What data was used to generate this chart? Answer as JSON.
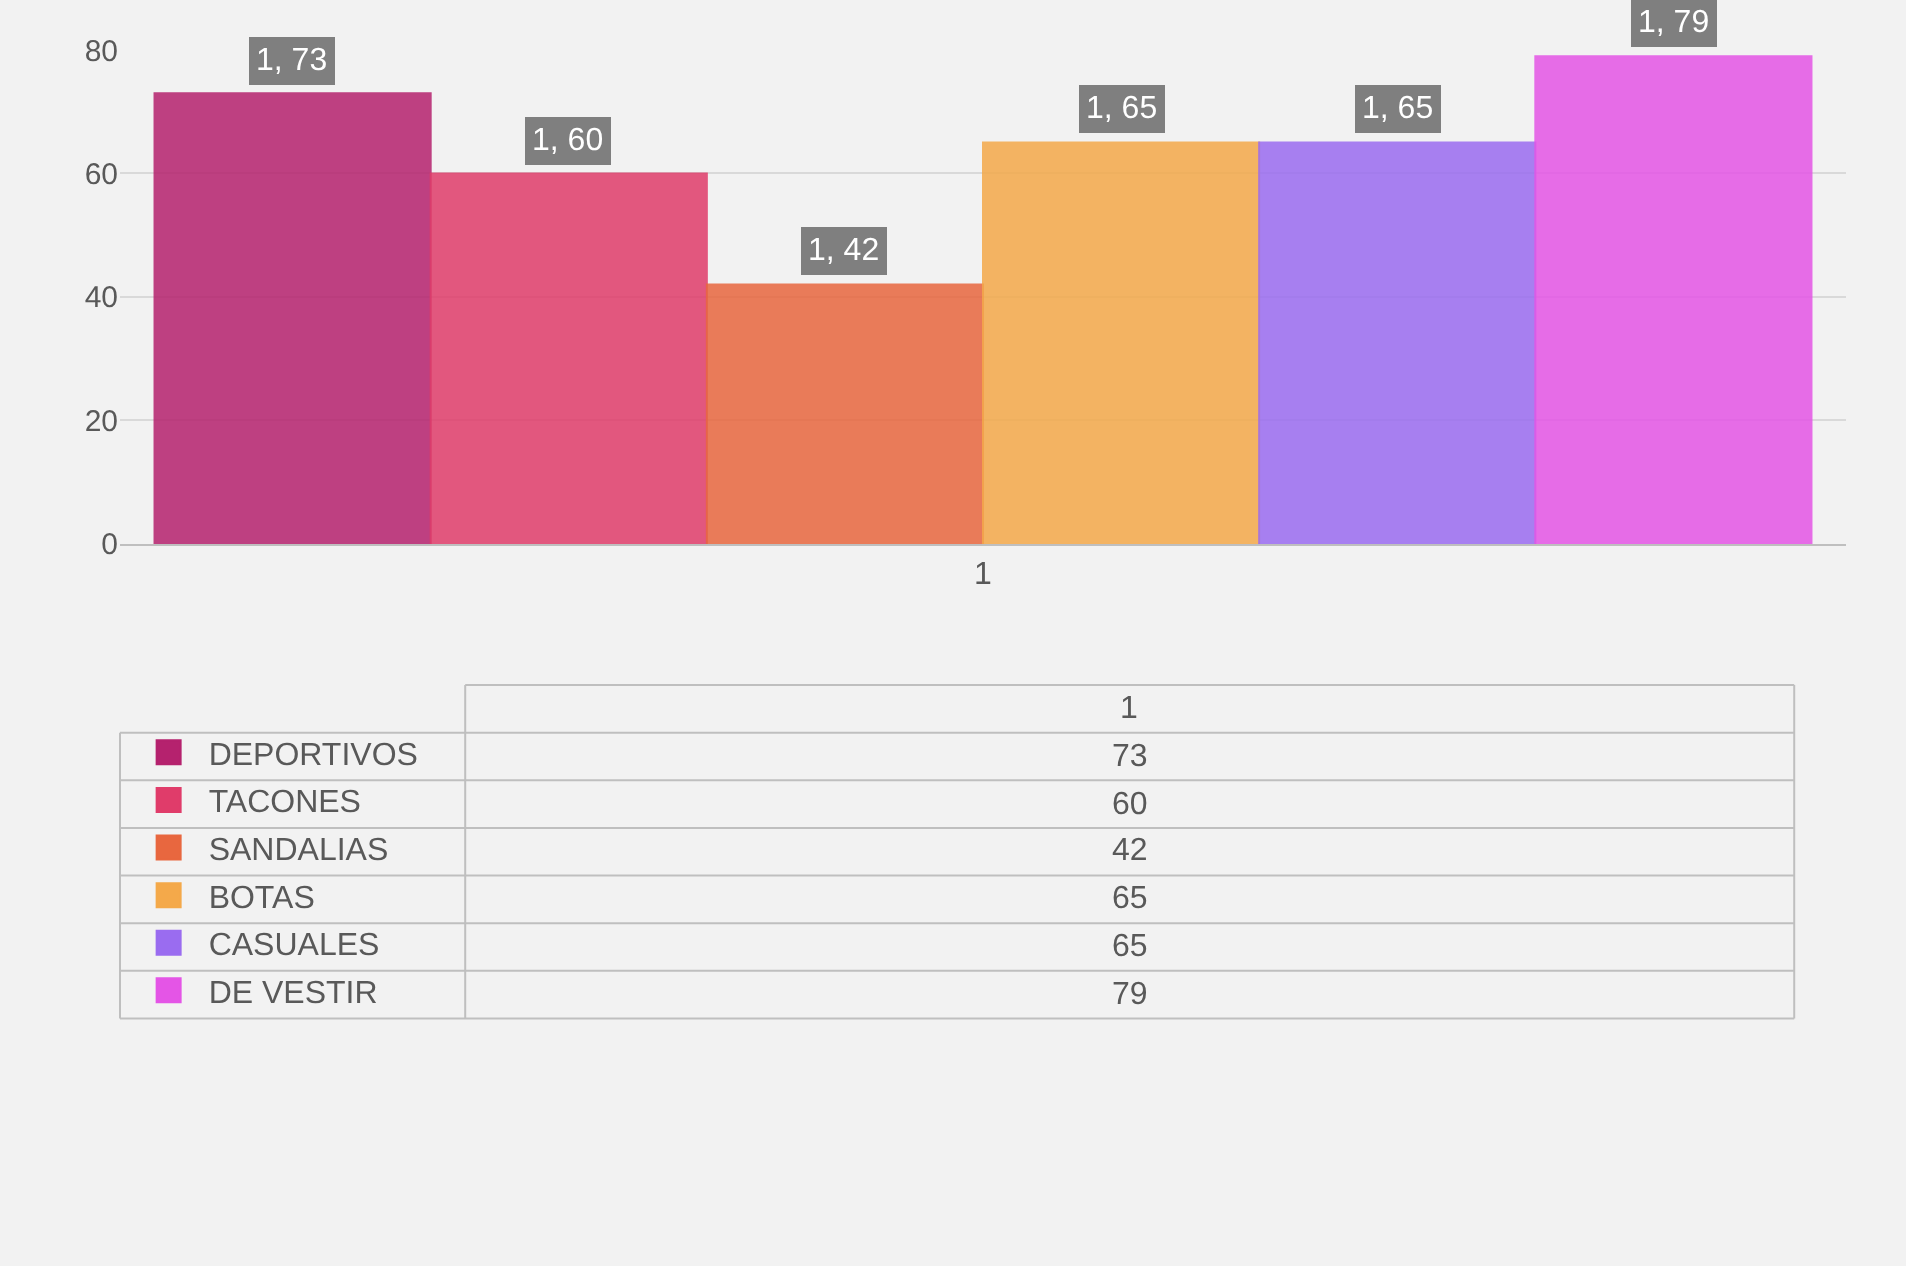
{
  "chart_data": {
    "type": "bar",
    "categories": [
      "1"
    ],
    "ylim": [
      0,
      80
    ],
    "yticks": [
      0,
      20,
      40,
      60,
      80
    ],
    "grid": "y",
    "legend": "bottom",
    "series": [
      {
        "name": "DEPORTIVOS",
        "color": "#b5226e",
        "values": [
          73
        ]
      },
      {
        "name": "TACONES",
        "color": "#e03c6a",
        "values": [
          60
        ]
      },
      {
        "name": "SANDALIAS",
        "color": "#e8673f",
        "values": [
          42
        ]
      },
      {
        "name": "BOTAS",
        "color": "#f4a94a",
        "values": [
          65
        ]
      },
      {
        "name": "CASUALES",
        "color": "#9a6cf0",
        "values": [
          65
        ]
      },
      {
        "name": "DE VESTIR",
        "color": "#e455e6",
        "values": [
          79
        ]
      }
    ],
    "annotations": [
      "1, 73",
      "1, 60",
      "1, 42",
      "1, 65",
      "1, 65",
      "1, 79",
      "73",
      "60",
      "42",
      "65",
      "65",
      "79"
    ]
  }
}
